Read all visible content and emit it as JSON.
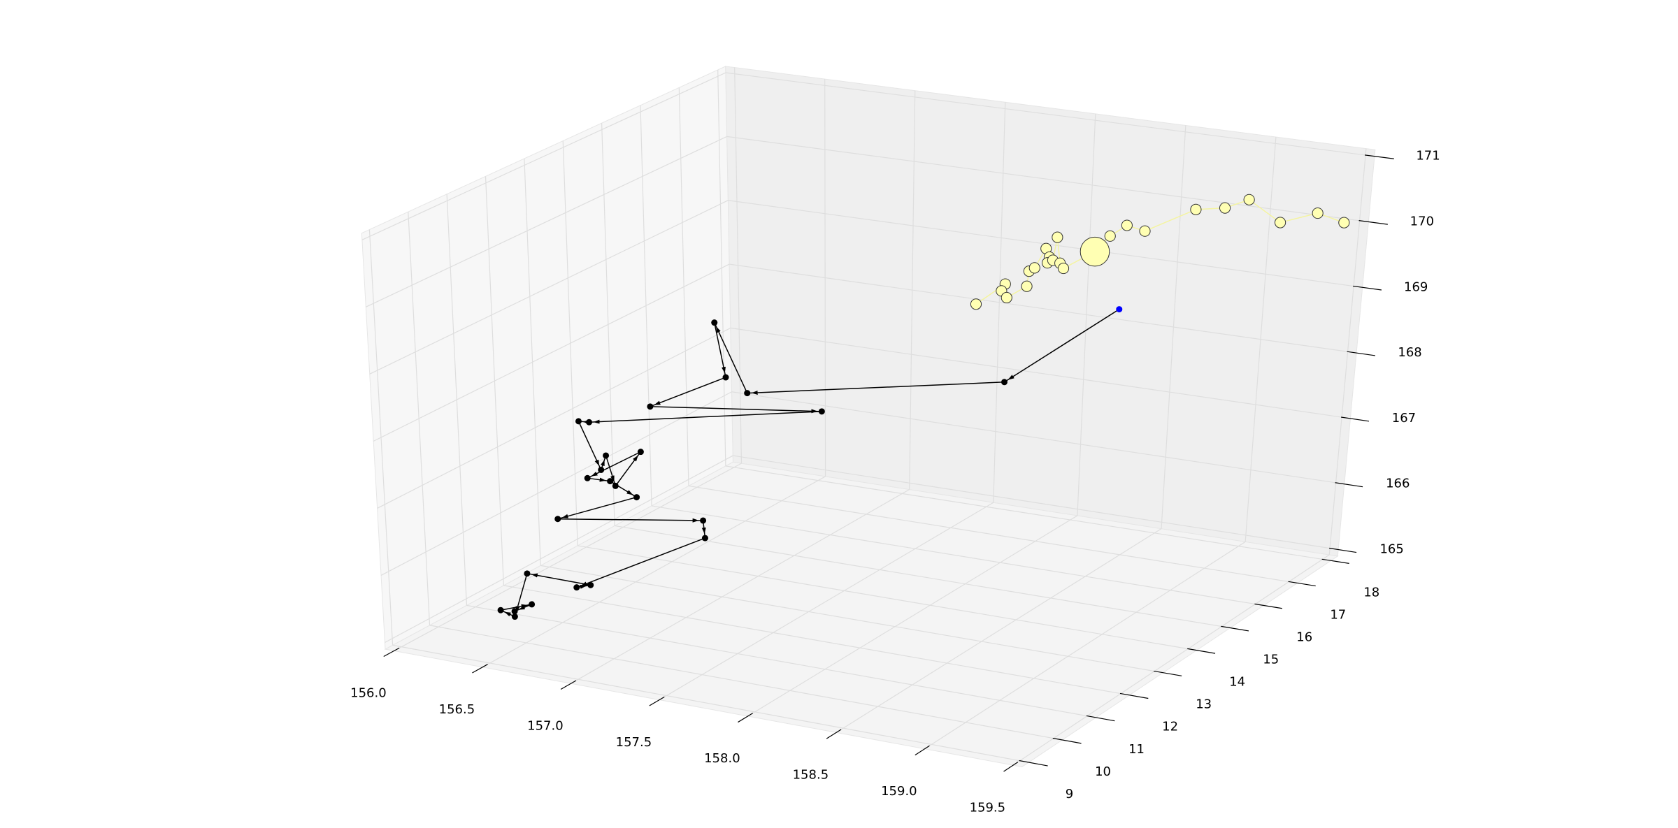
{
  "chart_data": {
    "type": "scatter3d",
    "xlim": [
      155.95,
      159.55
    ],
    "ylim": [
      8.8,
      18.2
    ],
    "zlim": [
      164.9,
      171.1
    ],
    "xticks": [
      {
        "value": 156,
        "label": "156.0"
      },
      156.5,
      {
        "value": 157,
        "label": "157.0"
      },
      157.5,
      {
        "value": 158,
        "label": "158.0"
      },
      158.5,
      {
        "value": 159,
        "label": "159.0"
      },
      159.5
    ],
    "yticks": [
      9,
      10,
      11,
      12,
      13,
      14,
      15,
      16,
      17,
      18
    ],
    "zticks": [
      165,
      166,
      167,
      168,
      169,
      170,
      171
    ],
    "grid": true,
    "series": [
      {
        "color": "#000000",
        "start_color": "#0000ff",
        "arrows": true,
        "x": [
          159.11,
          158.49,
          157.05,
          156.87,
          156.93,
          156.5,
          157.47,
          156.15,
          156.09,
          156.21,
          156.24,
          156.29,
          156.44,
          156.13,
          156.26,
          156.41,
          155.95,
          156.79,
          156.8,
          156.65,
          156.73,
          156.37,
          156.29,
          156.21,
          156.39,
          156.29
        ],
        "y": [
          13.5,
          13.5,
          13.5,
          13.5,
          13.5,
          13.5,
          13.5,
          13.5,
          13.5,
          13.5,
          13.5,
          13.5,
          13.5,
          13.5,
          13.5,
          13.5,
          13.5,
          13.5,
          13.5,
          10.7,
          10.7,
          10.7,
          10.7,
          10.7,
          10.7,
          10.7
        ],
        "z": [
          169.81,
          168.53,
          167.82,
          168.81,
          168.01,
          167.4,
          167.71,
          167.02,
          167.01,
          166.32,
          166.55,
          166.11,
          166.69,
          166.16,
          166.17,
          165.99,
          165.46,
          165.8,
          165.54,
          165.58,
          165.65,
          165.66,
          164.98,
          165.04,
          165.21,
          165.06
        ]
      },
      {
        "color": "#ffffb3",
        "line_color": "#f4f4a0",
        "edge_color": "#333333",
        "x": [
          157.94,
          158.1,
          158.08,
          158.11,
          158.22,
          158.23,
          158.26,
          158.32,
          158.34,
          158.33,
          158.36,
          158.38,
          158.4,
          158.42,
          158.59,
          158.67,
          158.76,
          158.86,
          158.86,
          159.02,
          159.15,
          159.33,
          159.36,
          159.51
        ],
        "y": [
          15.4,
          15.4,
          15.4,
          15.4,
          15.4,
          15.4,
          15.4,
          15.4,
          15.4,
          15.4,
          15.4,
          15.4,
          15.4,
          15.4,
          15.4,
          15.4,
          15.4,
          15.4,
          16.8,
          16.8,
          16.8,
          16.8,
          17.7,
          17.7
        ],
        "z": [
          168.95,
          169.31,
          169.2,
          169.11,
          169.32,
          169.55,
          169.61,
          169.92,
          169.8,
          169.71,
          169.76,
          170.11,
          169.73,
          169.66,
          169.97,
          170.23,
          170.42,
          170.37,
          170.32,
          170.4,
          170.57,
          170.29,
          170.2,
          170.11
        ],
        "sizes": [
          40,
          40,
          40,
          40,
          40,
          40,
          40,
          40,
          40,
          40,
          40,
          40,
          40,
          40,
          300,
          40,
          40,
          40,
          40,
          40,
          40,
          40,
          40,
          40
        ]
      }
    ]
  }
}
